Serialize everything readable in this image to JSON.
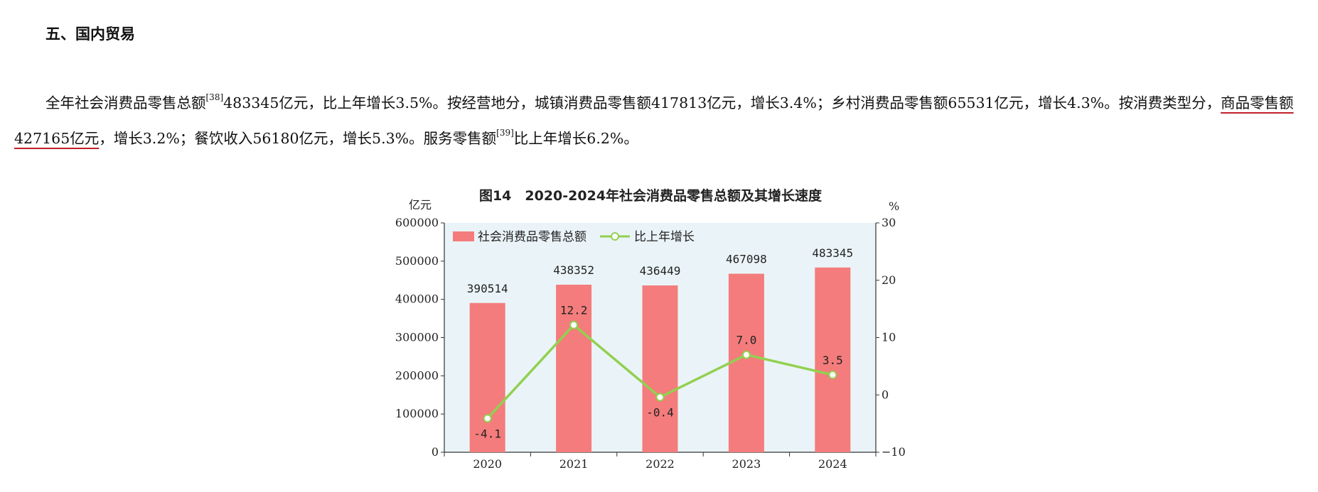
{
  "heading": "五、国内贸易",
  "paragraph": {
    "part1": "全年社会消费品零售总额",
    "ref1": "[38]",
    "part2": "483345亿元，比上年增长3.5%。按经营地分，城镇消费品零售额417813亿元，增长3.4%；乡村消费品零售额65531亿元，增长4.3%。按消费类型分，",
    "underlined": "商品零售额427165亿元",
    "part3": "，增长3.2%；餐饮收入56180亿元，增长5.3%。服务零售额",
    "ref2": "[39]",
    "part4": "比上年增长6.2%。"
  },
  "chart_data": {
    "type": "bar",
    "title": "图14　2020-2024年社会消费品零售总额及其增长速度",
    "ylabel_left": "亿元",
    "ylabel_right": "%",
    "categories": [
      "2020",
      "2021",
      "2022",
      "2023",
      "2024"
    ],
    "ylim_left": [
      0,
      600000
    ],
    "yticks_left": [
      "0",
      "100000",
      "200000",
      "300000",
      "400000",
      "500000",
      "600000"
    ],
    "ylim_right": [
      -10,
      30
    ],
    "yticks_right": [
      "−10",
      "0",
      "10",
      "20",
      "30"
    ],
    "legend_position": "top-left",
    "series": [
      {
        "name": "社会消费品零售总额",
        "type": "bar",
        "axis": "left",
        "color": "#f47c7c",
        "values": [
          390514,
          438352,
          436449,
          467098,
          483345
        ],
        "labels": [
          "390514",
          "438352",
          "436449",
          "467098",
          "483345"
        ]
      },
      {
        "name": "比上年增长",
        "type": "line",
        "axis": "right",
        "color": "#92d050",
        "values": [
          -4.1,
          12.2,
          -0.4,
          7.0,
          3.5
        ],
        "labels": [
          "-4.1",
          "12.2",
          "-0.4",
          "7.0",
          "3.5"
        ]
      }
    ],
    "plot_background": "#eaf4f8"
  }
}
